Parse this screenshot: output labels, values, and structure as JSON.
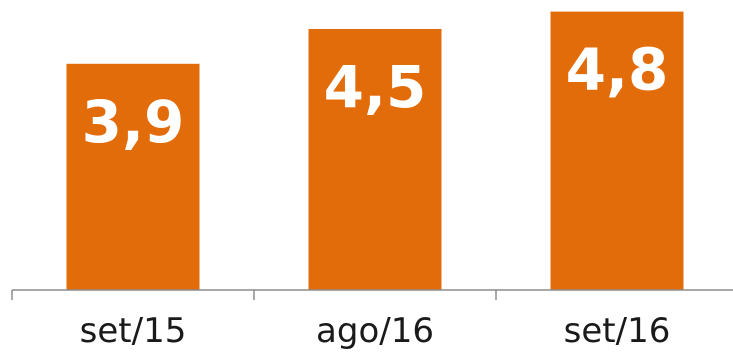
{
  "chart_data": {
    "type": "bar",
    "categories": [
      "set/15",
      "ago/16",
      "set/16"
    ],
    "values": [
      3.9,
      4.5,
      4.8
    ],
    "data_labels": [
      "3,9",
      "4,5",
      "4,8"
    ],
    "title": "",
    "xlabel": "",
    "ylabel": "",
    "ylim": [
      0,
      5.0
    ],
    "grid": false,
    "legend": "none",
    "colors": {
      "bar": "#E36C0A",
      "axis": "#8C8C8C",
      "bar_label": "#FFFFFF",
      "tick_label": "#1A1A1A"
    }
  }
}
